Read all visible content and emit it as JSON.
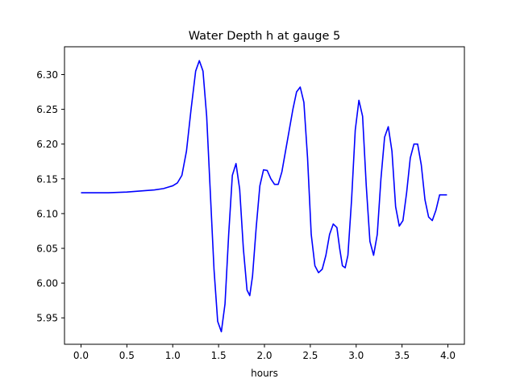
{
  "chart_data": {
    "type": "line",
    "title": "Water Depth h at gauge 5",
    "xlabel": "hours",
    "ylabel": "",
    "xlim": [
      -0.18,
      4.18
    ],
    "ylim": [
      5.912,
      6.34
    ],
    "xticks": [
      0.0,
      0.5,
      1.0,
      1.5,
      2.0,
      2.5,
      3.0,
      3.5,
      4.0
    ],
    "xtick_labels": [
      "0.0",
      "0.5",
      "1.0",
      "1.5",
      "2.0",
      "2.5",
      "3.0",
      "3.5",
      "4.0"
    ],
    "yticks": [
      5.95,
      6.0,
      6.05,
      6.1,
      6.15,
      6.2,
      6.25,
      6.3
    ],
    "ytick_labels": [
      "5.95",
      "6.00",
      "6.05",
      "6.10",
      "6.15",
      "6.20",
      "6.25",
      "6.30"
    ],
    "grid": false,
    "series": [
      {
        "color": "#0000ff",
        "x": [
          0.0,
          0.3,
          0.5,
          0.6,
          0.7,
          0.8,
          0.9,
          0.95,
          1.0,
          1.05,
          1.1,
          1.15,
          1.2,
          1.25,
          1.29,
          1.33,
          1.37,
          1.41,
          1.45,
          1.49,
          1.53,
          1.57,
          1.61,
          1.65,
          1.69,
          1.73,
          1.77,
          1.81,
          1.84,
          1.87,
          1.91,
          1.95,
          1.99,
          2.03,
          2.07,
          2.11,
          2.15,
          2.19,
          2.23,
          2.27,
          2.31,
          2.35,
          2.39,
          2.43,
          2.47,
          2.51,
          2.55,
          2.59,
          2.63,
          2.67,
          2.71,
          2.75,
          2.79,
          2.82,
          2.85,
          2.88,
          2.91,
          2.95,
          2.99,
          3.03,
          3.07,
          3.11,
          3.15,
          3.19,
          3.23,
          3.27,
          3.31,
          3.35,
          3.39,
          3.43,
          3.47,
          3.51,
          3.55,
          3.59,
          3.63,
          3.67,
          3.71,
          3.75,
          3.79,
          3.83,
          3.87,
          3.91,
          3.95,
          3.99
        ],
        "y": [
          6.13,
          6.13,
          6.131,
          6.132,
          6.133,
          6.134,
          6.136,
          6.138,
          6.14,
          6.144,
          6.155,
          6.19,
          6.25,
          6.305,
          6.32,
          6.305,
          6.24,
          6.13,
          6.02,
          5.945,
          5.93,
          5.97,
          6.07,
          6.155,
          6.172,
          6.135,
          6.05,
          5.99,
          5.982,
          6.01,
          6.08,
          6.14,
          6.163,
          6.162,
          6.15,
          6.142,
          6.142,
          6.16,
          6.19,
          6.22,
          6.25,
          6.275,
          6.282,
          6.26,
          6.18,
          6.07,
          6.025,
          6.015,
          6.02,
          6.04,
          6.07,
          6.085,
          6.08,
          6.05,
          6.025,
          6.022,
          6.04,
          6.12,
          6.22,
          6.263,
          6.24,
          6.14,
          6.06,
          6.04,
          6.07,
          6.15,
          6.21,
          6.225,
          6.19,
          6.11,
          6.082,
          6.09,
          6.13,
          6.18,
          6.2,
          6.2,
          6.17,
          6.12,
          6.095,
          6.09,
          6.105,
          6.127,
          6.127,
          6.127
        ]
      }
    ]
  }
}
